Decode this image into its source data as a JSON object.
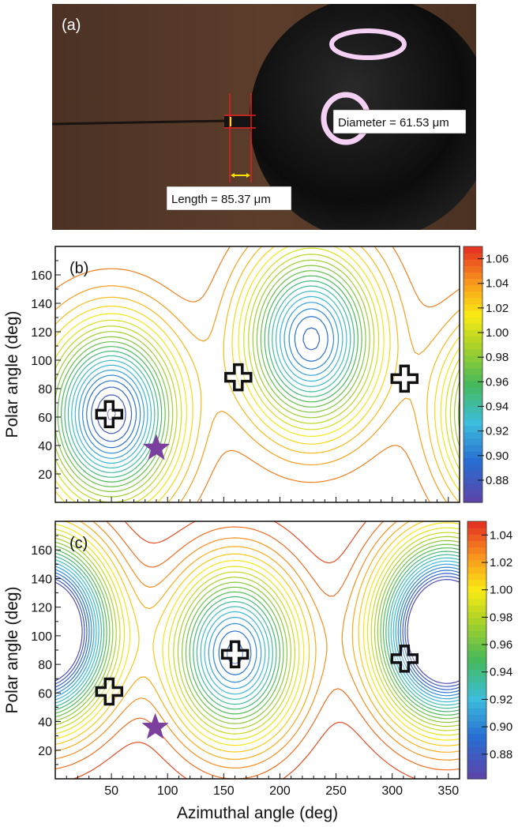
{
  "photo": {
    "panel_label": "(a)",
    "diameter_label": "Diameter = 61.53 μm",
    "length_label": "Length = 85.37 μm",
    "background_color": "#5a3b2a",
    "sphere_color": "#0a0a0a",
    "measure_line_color": "#e02020",
    "arrow_color": "#f5e000"
  },
  "chart_data": [
    {
      "type": "contour",
      "panel_label": "(b)",
      "xlabel": "",
      "ylabel": "Polar angle (deg)",
      "xlim": [
        0,
        360
      ],
      "ylim": [
        0,
        180
      ],
      "y_ticks": [
        20,
        40,
        60,
        80,
        100,
        120,
        140,
        160
      ],
      "colorbar_ticks": [
        "1.06",
        "1.04",
        "1.02",
        "1.00",
        "0.98",
        "0.96",
        "0.94",
        "0.92",
        "0.90",
        "0.88"
      ],
      "colorbar_range": [
        0.87,
        1.07
      ],
      "minima": [
        {
          "azimuth": 50,
          "polar": 62,
          "value": 0.875
        },
        {
          "azimuth": 228,
          "polar": 115,
          "value": 0.89
        }
      ],
      "markers": [
        {
          "symbol": "cross",
          "azimuth": 48,
          "polar": 62
        },
        {
          "symbol": "cross",
          "azimuth": 163,
          "polar": 88
        },
        {
          "symbol": "cross",
          "azimuth": 311,
          "polar": 87
        },
        {
          "symbol": "star",
          "azimuth": 90,
          "polar": 38
        }
      ]
    },
    {
      "type": "contour",
      "panel_label": "(c)",
      "xlabel": "Azimuthal angle (deg)",
      "ylabel": "Polar angle (deg)",
      "xlim": [
        0,
        360
      ],
      "ylim": [
        0,
        180
      ],
      "x_ticks": [
        50,
        100,
        150,
        200,
        250,
        300,
        350
      ],
      "y_ticks": [
        20,
        40,
        60,
        80,
        100,
        120,
        140,
        160
      ],
      "colorbar_ticks": [
        "1.04",
        "1.02",
        "1.00",
        "0.98",
        "0.96",
        "0.94",
        "0.92",
        "0.90",
        "0.88"
      ],
      "colorbar_range": [
        0.86,
        1.055
      ],
      "minima": [
        {
          "azimuth": 160,
          "polar": 88,
          "value": 0.88
        },
        {
          "azimuth": 340,
          "polar": 103,
          "value": 0.895
        },
        {
          "azimuth": 0,
          "polar": 103,
          "value": 0.93
        }
      ],
      "markers": [
        {
          "symbol": "cross",
          "azimuth": 48,
          "polar": 61
        },
        {
          "symbol": "cross",
          "azimuth": 160,
          "polar": 87
        },
        {
          "symbol": "cross",
          "azimuth": 311,
          "polar": 84
        },
        {
          "symbol": "star",
          "azimuth": 89,
          "polar": 36
        }
      ]
    }
  ]
}
